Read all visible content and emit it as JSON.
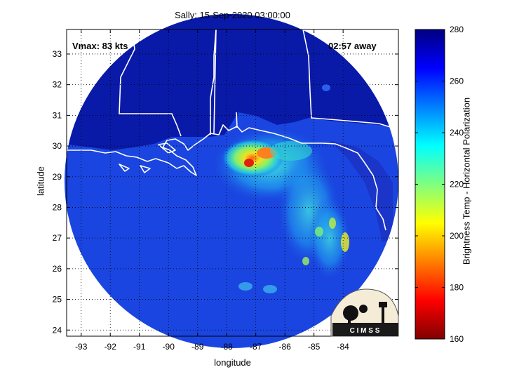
{
  "title": "Sally: 15-Sep-2020 03:00:00",
  "vmax_label": "Vmax: 83 kts",
  "time_label": "02:57 away",
  "xlabel": "longitude",
  "ylabel": "latitude",
  "colorbar_label": "Brightness Temp - Horizontal Polarization",
  "logo_text": "C I M S S",
  "x_ticks": [
    "-93",
    "-92",
    "-91",
    "-90",
    "-89",
    "-88",
    "-87",
    "-86",
    "-85",
    "-84"
  ],
  "y_ticks": [
    "24",
    "25",
    "26",
    "27",
    "28",
    "29",
    "30",
    "31",
    "32",
    "33"
  ],
  "colorbar_ticks": [
    "160",
    "180",
    "200",
    "220",
    "240",
    "260",
    "280"
  ],
  "colors": {
    "background_cold": "#0a1aa8",
    "ocean_mid": "#1a45e0",
    "land_warm": "#1d2fb8",
    "rain_cyan": "#20c8e8",
    "rain_green": "#9af05a",
    "rain_yellow": "#f0f020",
    "rain_orange": "#ff8a10",
    "rain_red": "#e02010"
  },
  "map": {
    "lon_range": [
      -93.5,
      -82.1
    ],
    "lat_range": [
      23.8,
      33.8
    ],
    "colorbar_range": [
      160,
      280
    ],
    "colorbar_colormap": "jet",
    "swath": "circular",
    "grid": "dotted"
  }
}
